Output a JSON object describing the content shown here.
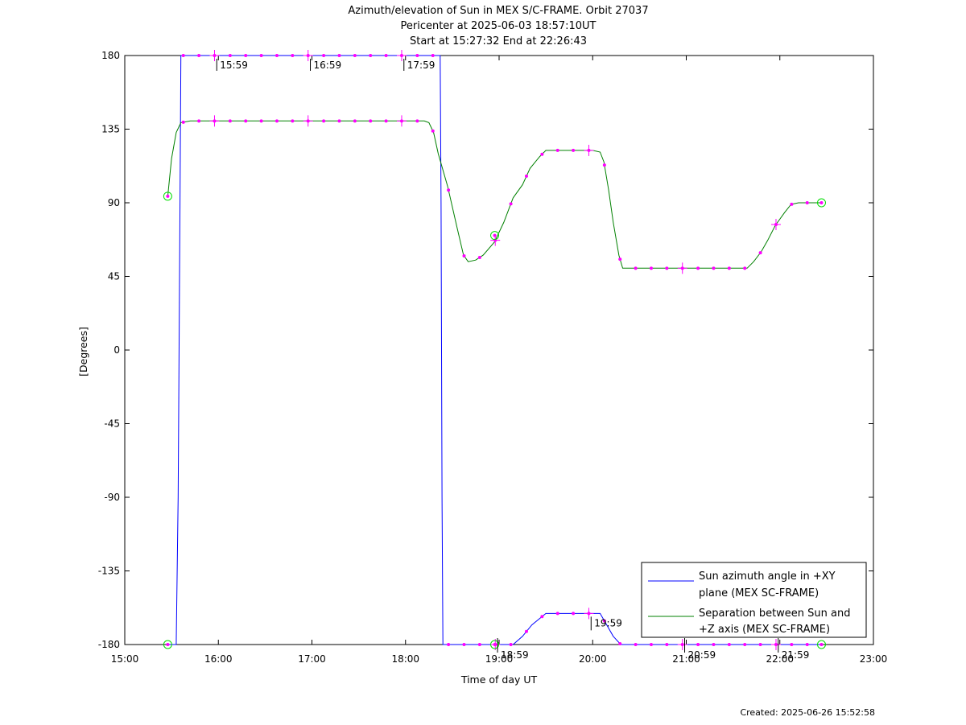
{
  "chart_data": {
    "type": "line",
    "title_lines": [
      "Azimuth/elevation of Sun in MEX S/C-FRAME.  Orbit 27037",
      "Pericenter at 2025-06-03 18:57:10UT",
      "Start at 15:27:32 End at 22:26:43"
    ],
    "xlabel": "Time of day UT",
    "ylabel": "[Degrees]",
    "xlim_hours": [
      15,
      23
    ],
    "ylim": [
      -180,
      180
    ],
    "x_ticks": [
      {
        "value": 15,
        "label": "15:00"
      },
      {
        "value": 16,
        "label": "16:00"
      },
      {
        "value": 17,
        "label": "17:00"
      },
      {
        "value": 18,
        "label": "18:00"
      },
      {
        "value": 19,
        "label": "19:00"
      },
      {
        "value": 20,
        "label": "20:00"
      },
      {
        "value": 21,
        "label": "21:00"
      },
      {
        "value": 22,
        "label": "22:00"
      },
      {
        "value": 23,
        "label": "23:00"
      }
    ],
    "y_ticks": [
      {
        "value": 180,
        "label": "180"
      },
      {
        "value": 135,
        "label": "135"
      },
      {
        "value": 90,
        "label": "90"
      },
      {
        "value": 45,
        "label": "45"
      },
      {
        "value": 0,
        "label": "0"
      },
      {
        "value": -45,
        "label": "-45"
      },
      {
        "value": -90,
        "label": "-90"
      },
      {
        "value": -135,
        "label": "-135"
      },
      {
        "value": -180,
        "label": "-180"
      }
    ],
    "series": [
      {
        "name": "Sun azimuth angle in +XY plane (MEX SC-FRAME)",
        "legend_lines": [
          "Sun azimuth angle in +XY",
          "plane (MEX SC-FRAME)"
        ],
        "color": "#0000ff",
        "points": [
          [
            15.459,
            -180
          ],
          [
            15.55,
            -180
          ],
          [
            15.57,
            -90
          ],
          [
            15.59,
            90
          ],
          [
            15.6,
            180
          ],
          [
            16.0,
            180
          ],
          [
            17.0,
            180
          ],
          [
            18.0,
            180
          ],
          [
            18.37,
            180
          ],
          [
            18.38,
            90
          ],
          [
            18.39,
            -90
          ],
          [
            18.4,
            -180
          ],
          [
            18.95,
            -180
          ],
          [
            19.15,
            -180
          ],
          [
            19.25,
            -175
          ],
          [
            19.35,
            -168
          ],
          [
            19.5,
            -161
          ],
          [
            20.0,
            -161
          ],
          [
            20.08,
            -161
          ],
          [
            20.15,
            -168
          ],
          [
            20.22,
            -175
          ],
          [
            20.3,
            -180
          ],
          [
            21.0,
            -180
          ],
          [
            22.0,
            -180
          ],
          [
            22.445,
            -180
          ]
        ]
      },
      {
        "name": "Separation between Sun and +Z axis (MEX SC-FRAME)",
        "legend_lines": [
          "Separation between Sun and",
          "+Z axis (MEX SC-FRAME)"
        ],
        "color": "#008000",
        "points": [
          [
            15.459,
            94
          ],
          [
            15.5,
            117
          ],
          [
            15.55,
            133
          ],
          [
            15.6,
            139
          ],
          [
            15.7,
            140
          ],
          [
            18.2,
            140
          ],
          [
            18.25,
            139
          ],
          [
            18.3,
            133
          ],
          [
            18.35,
            120
          ],
          [
            18.45,
            100
          ],
          [
            18.55,
            75
          ],
          [
            18.62,
            58
          ],
          [
            18.67,
            54
          ],
          [
            18.75,
            55
          ],
          [
            18.83,
            58
          ],
          [
            18.95,
            66
          ],
          [
            19.05,
            78
          ],
          [
            19.15,
            93
          ],
          [
            19.25,
            101
          ],
          [
            19.33,
            111
          ],
          [
            19.43,
            118
          ],
          [
            19.5,
            122
          ],
          [
            20.0,
            122
          ],
          [
            20.08,
            121
          ],
          [
            20.12,
            115
          ],
          [
            20.17,
            98
          ],
          [
            20.22,
            78
          ],
          [
            20.28,
            58
          ],
          [
            20.32,
            50
          ],
          [
            20.4,
            50
          ],
          [
            21.65,
            50
          ],
          [
            21.72,
            54
          ],
          [
            21.8,
            60
          ],
          [
            21.87,
            67
          ],
          [
            21.95,
            76
          ],
          [
            22.05,
            84
          ],
          [
            22.12,
            89
          ],
          [
            22.2,
            90
          ],
          [
            22.445,
            90
          ]
        ]
      }
    ],
    "markers": {
      "color": "#ff00ff",
      "interval_minutes": 10,
      "circle_color": "#00dd00"
    },
    "annotations": [
      {
        "label": "15:59",
        "x": 15.983,
        "y": 180
      },
      {
        "label": "16:59",
        "x": 16.983,
        "y": 180
      },
      {
        "label": "17:59",
        "x": 17.983,
        "y": 180
      },
      {
        "label": "18:59",
        "x": 18.983,
        "y": -180
      },
      {
        "label": "19:59",
        "x": 19.983,
        "y": -161
      },
      {
        "label": "20:59",
        "x": 20.983,
        "y": -180
      },
      {
        "label": "21:59",
        "x": 21.983,
        "y": -180
      }
    ],
    "event_circles": [
      {
        "x": 15.459,
        "y": 94
      },
      {
        "x": 15.459,
        "y": -180
      },
      {
        "x": 18.953,
        "y": 70
      },
      {
        "x": 18.953,
        "y": -180
      },
      {
        "x": 22.445,
        "y": 90
      },
      {
        "x": 22.445,
        "y": -180
      }
    ],
    "legend_position": "bottom-right",
    "grid": false
  },
  "footer": {
    "created": "Created: 2025-06-26 15:52:58"
  }
}
